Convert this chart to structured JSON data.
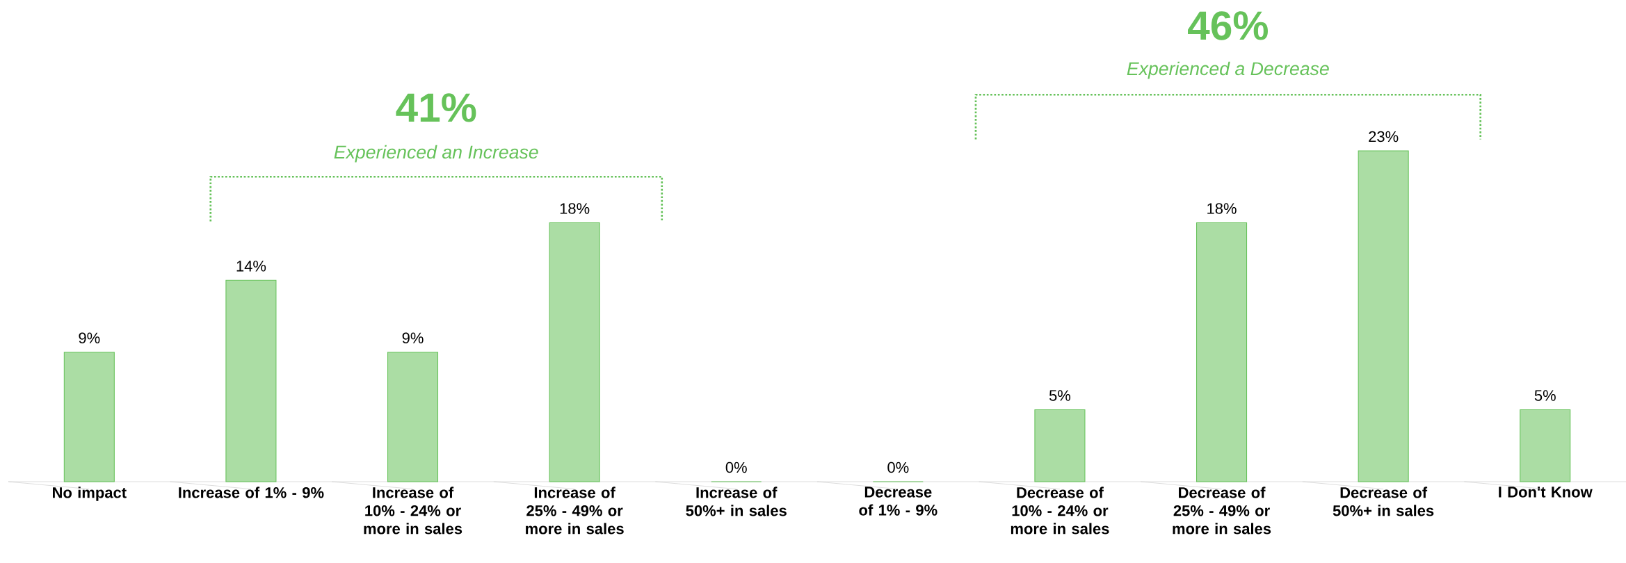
{
  "chart_data": {
    "type": "bar",
    "categories": [
      "No impact",
      "Increase of 1% - 9%",
      "Increase of 10% - 24% or more in sales",
      "Increase of 25% - 49% or more in sales",
      "Increase of 50%+ in sales",
      "Decrease of 1% - 9%",
      "Decrease of 10% - 24% or more in sales",
      "Decrease of 25% - 49% or more in sales",
      "Decrease of 50%+ in sales",
      "I Don't Know"
    ],
    "values": [
      9,
      14,
      9,
      18,
      0,
      0,
      5,
      18,
      23,
      5
    ],
    "value_labels": [
      "9%",
      "14%",
      "9%",
      "18%",
      "0%",
      "0%",
      "5%",
      "18%",
      "23%",
      "5%"
    ],
    "color": "#66c25a",
    "annotations": [
      "41%",
      "Experienced an Increase",
      "46%",
      "Experienced a Decrease"
    ]
  }
}
